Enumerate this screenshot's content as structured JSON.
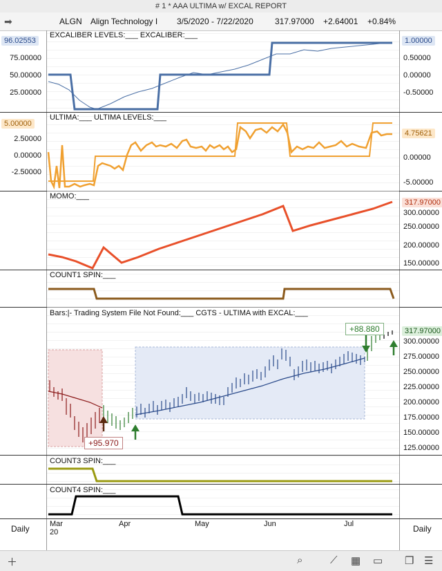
{
  "window_title": "# 1 * AAA ULTIMA w/ EXCAL REPORT",
  "header": {
    "symbol": "ALGN",
    "name": "Align Technology I",
    "range": "3/5/2020 - 7/22/2020",
    "price": "317.97000",
    "change": "+2.64001",
    "pct": "+0.84%"
  },
  "left_label": "Daily",
  "right_label": "Daily",
  "date_axis": [
    "Mar",
    "Apr",
    "May",
    "Jun",
    "Jul"
  ],
  "year_label": "20",
  "panels": {
    "excaliber": {
      "label": "EXCALIBER LEVELS:___   EXCALIBER:___",
      "left_value": "96.02553",
      "left_ticks": [
        "75.00000",
        "50.00000",
        "25.00000"
      ],
      "right_value": "1.00000",
      "right_ticks": [
        "0.50000",
        "0.00000",
        "-0.50000"
      ]
    },
    "ultima": {
      "label": "ULTIMA:___   ULTIMA LEVELS:___",
      "left_value": "5.00000",
      "left_ticks": [
        "2.50000",
        "0.00000",
        "-2.50000"
      ],
      "right_value": "4.75621",
      "right_ticks": [
        "0.00000",
        "-5.00000"
      ]
    },
    "momo": {
      "label": "MOMO:___",
      "right_value": "317.97000",
      "right_ticks": [
        "300.00000",
        "250.00000",
        "200.00000",
        "150.00000"
      ]
    },
    "count1": {
      "label": "COUNT1 SPIN:___"
    },
    "bars": {
      "label": "Bars:|-   Trading System File Not Found:___   CGTS - ULTIMA with EXCAL:___",
      "right_value": "317.97000",
      "right_ticks": [
        "300.00000",
        "275.00000",
        "250.00000",
        "225.00000",
        "200.00000",
        "175.00000",
        "150.00000",
        "125.00000"
      ],
      "annotation_left": "+95.970",
      "annotation_right": "+88.880"
    },
    "count3": {
      "label": "COUNT3 SPIN:___"
    },
    "count4": {
      "label": "COUNT4 SPIN:___"
    }
  },
  "colors": {
    "excaliber": "#4a6fa5",
    "ultima": "#f0a030",
    "momo": "#e8502a",
    "count1": "#8b5a1c",
    "count3": "#9a9a10",
    "count4": "#000000",
    "bars_down": "#8b1a1a",
    "bars_up": "#2e7d2e",
    "bars_blue": "#2a4a8a"
  },
  "chart_data": {
    "type": "line",
    "x": [
      "2020-03-05",
      "2020-07-22"
    ],
    "series_close": {
      "momo": [
        180,
        170,
        160,
        150,
        195,
        165,
        180,
        195,
        210,
        225,
        240,
        255,
        270,
        285,
        300,
        270,
        280,
        290,
        300,
        310,
        318
      ],
      "price": [
        230,
        215,
        190,
        160,
        140,
        170,
        185,
        190,
        200,
        215,
        225,
        235,
        250,
        265,
        285,
        255,
        260,
        270,
        280,
        300,
        318
      ]
    }
  }
}
